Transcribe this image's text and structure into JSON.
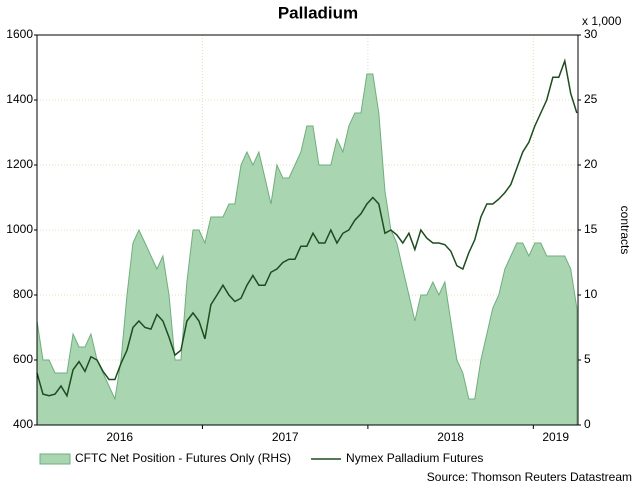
{
  "chart_data": {
    "type": "line",
    "title": "Palladium",
    "y2_unit_label": "x 1,000",
    "y2_label": "contracts",
    "source": "Source: Thomson Reuters Datastream",
    "x": [
      2016.0,
      2016.036,
      2016.073,
      2016.109,
      2016.145,
      2016.181,
      2016.218,
      2016.254,
      2016.29,
      2016.326,
      2016.363,
      2016.399,
      2016.435,
      2016.471,
      2016.508,
      2016.544,
      2016.58,
      2016.616,
      2016.653,
      2016.689,
      2016.725,
      2016.761,
      2016.798,
      2016.834,
      2016.87,
      2016.906,
      2016.943,
      2016.979,
      2017.015,
      2017.051,
      2017.088,
      2017.124,
      2017.16,
      2017.196,
      2017.233,
      2017.269,
      2017.305,
      2017.341,
      2017.378,
      2017.414,
      2017.45,
      2017.486,
      2017.523,
      2017.559,
      2017.595,
      2017.631,
      2017.668,
      2017.704,
      2017.74,
      2017.776,
      2017.813,
      2017.849,
      2017.885,
      2017.921,
      2017.958,
      2017.994,
      2018.03,
      2018.066,
      2018.103,
      2018.139,
      2018.175,
      2018.211,
      2018.248,
      2018.284,
      2018.32,
      2018.356,
      2018.393,
      2018.429,
      2018.465,
      2018.501,
      2018.538,
      2018.574,
      2018.61,
      2018.646,
      2018.683,
      2018.719,
      2018.755,
      2018.791,
      2018.828,
      2018.864,
      2018.9,
      2018.936,
      2018.973,
      2019.009,
      2019.045,
      2019.081,
      2019.118,
      2019.154,
      2019.19,
      2019.226,
      2019.263
    ],
    "series": [
      {
        "name": "CFTC Net Position - Futures Only (RHS)",
        "type": "area",
        "axis": "y2",
        "color": "#a9d6b1",
        "line_color": "#6fae7d",
        "values": [
          8,
          5,
          5,
          4,
          4,
          4,
          7,
          6,
          6,
          7,
          5,
          4,
          3,
          2,
          5,
          10,
          14,
          15,
          14,
          13,
          12,
          13,
          10,
          5,
          5,
          11,
          15,
          15,
          14,
          16,
          16,
          16,
          17,
          17,
          20,
          21,
          20,
          21,
          19,
          17,
          20,
          19,
          19,
          20,
          21,
          23,
          23,
          20,
          20,
          20,
          22,
          21,
          23,
          24,
          24,
          27,
          27,
          24,
          18,
          15,
          14,
          12,
          10,
          8,
          10,
          10,
          11,
          10,
          11,
          8,
          5,
          4,
          2,
          2,
          5,
          7,
          9,
          10,
          12,
          13,
          14,
          14,
          13,
          14,
          14,
          13,
          13,
          13,
          13,
          12,
          9
        ]
      },
      {
        "name": "Nymex Palladium Futures",
        "type": "line",
        "axis": "y",
        "color": "#1d4d1f",
        "values": [
          560,
          495,
          490,
          495,
          520,
          490,
          570,
          595,
          565,
          610,
          600,
          565,
          540,
          540,
          590,
          630,
          700,
          720,
          700,
          695,
          740,
          720,
          670,
          615,
          630,
          720,
          745,
          720,
          665,
          770,
          800,
          830,
          800,
          780,
          790,
          830,
          860,
          830,
          830,
          870,
          880,
          900,
          910,
          910,
          950,
          950,
          990,
          960,
          960,
          1000,
          960,
          990,
          1000,
          1030,
          1050,
          1080,
          1100,
          1080,
          990,
          1000,
          985,
          960,
          990,
          940,
          1000,
          975,
          960,
          960,
          955,
          935,
          890,
          880,
          930,
          970,
          1040,
          1080,
          1080,
          1095,
          1115,
          1140,
          1190,
          1240,
          1270,
          1320,
          1360,
          1400,
          1470,
          1470,
          1520,
          1420,
          1360
        ]
      }
    ],
    "xlim": [
      2016,
      2019.27
    ],
    "xticks": [
      {
        "value": 2016.5,
        "label": "2016"
      },
      {
        "value": 2017.5,
        "label": "2017"
      },
      {
        "value": 2018.5,
        "label": "2018"
      },
      {
        "value": 2019.135,
        "label": "2019"
      }
    ],
    "xgrid": [
      2017,
      2018,
      2019
    ],
    "ylim": [
      400,
      1600
    ],
    "yticks": [
      400,
      600,
      800,
      1000,
      1200,
      1400,
      1600
    ],
    "y2lim": [
      0,
      30
    ],
    "y2ticks": [
      0,
      5,
      10,
      15,
      20,
      25,
      30
    ],
    "grid": true
  }
}
